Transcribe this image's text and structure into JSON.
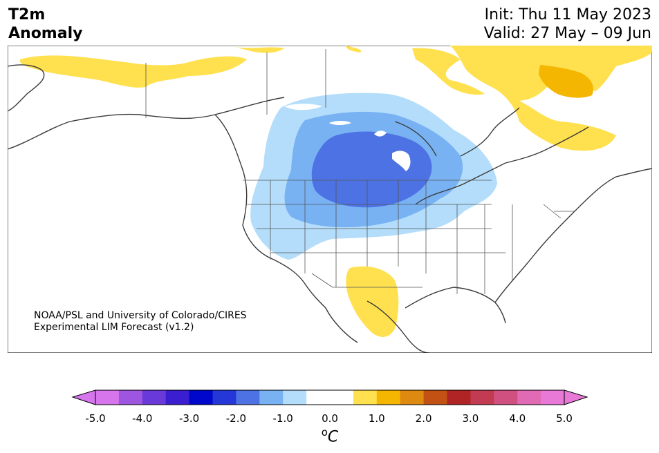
{
  "title": {
    "line1": "T2m",
    "line2": "Anomaly"
  },
  "dates": {
    "init": "Init: Thu 11 May 2023",
    "valid": "Valid: 27 May – 09 Jun"
  },
  "credit": {
    "line1": "NOAA/PSL and University of Colorado/CIRES",
    "line2": "Experimental LIM Forecast (v1.2)"
  },
  "colorbar": {
    "unit_base": "C",
    "unit_sup": "o",
    "ticks": [
      "-5.0",
      "-4.0",
      "-3.0",
      "-2.0",
      "-1.0",
      "0.0",
      "1.0",
      "2.0",
      "3.0",
      "4.0",
      "5.0"
    ],
    "colors": [
      "#d675ec",
      "#9e55e0",
      "#6a39d9",
      "#3a1ed0",
      "#0007cd",
      "#2537d6",
      "#4d72e3",
      "#78b2f3",
      "#b3ddfa",
      "#ffffff",
      "#ffffff",
      "#ffe04e",
      "#f4b600",
      "#de8a10",
      "#c25214",
      "#b02425",
      "#c23b53",
      "#d05080",
      "#e06ab3",
      "#e979d6"
    ],
    "under_color": "#d675ec",
    "over_color": "#e979d6"
  }
}
